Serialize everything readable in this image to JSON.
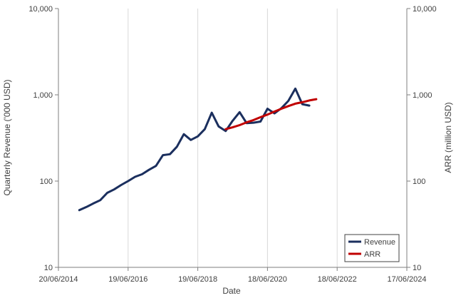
{
  "chart_data": {
    "type": "line",
    "title": "",
    "xlabel": "Date",
    "ylabel_left": "Quarterly Revenue ('000 USD)",
    "ylabel_right": "ARR (million USD)",
    "scale": "log",
    "ylim": [
      10,
      10000
    ],
    "y_ticks": [
      10,
      100,
      1000,
      10000
    ],
    "y_tick_labels": [
      "10",
      "100",
      "1,000",
      "10,000"
    ],
    "x_ticks": [
      0,
      2,
      4,
      6,
      8,
      10
    ],
    "x_tick_labels": [
      "20/06/2014",
      "19/06/2016",
      "19/06/2018",
      "18/06/2020",
      "18/06/2022",
      "17/06/2024"
    ],
    "x_unit": "years since 20/06/2014",
    "xlim": [
      0,
      10
    ],
    "gridlines": "vertical",
    "legend": {
      "position": "bottom-right",
      "entries": [
        "Revenue",
        "ARR"
      ]
    },
    "colors": {
      "Revenue": "#1b2f5e",
      "ARR": "#c00000",
      "grid": "#d9d9d9",
      "axis": "#7f7f7f"
    },
    "series": [
      {
        "name": "Revenue",
        "axis": "left",
        "x": [
          0.6,
          0.8,
          1.0,
          1.2,
          1.4,
          1.6,
          1.8,
          2.0,
          2.2,
          2.4,
          2.6,
          2.8,
          3.0,
          3.2,
          3.4,
          3.6,
          3.8,
          4.0,
          4.2,
          4.4,
          4.6,
          4.8,
          5.0,
          5.2,
          5.4,
          5.6,
          5.8,
          6.0,
          6.2,
          6.4,
          6.6,
          6.8,
          7.0,
          7.2,
          7.4,
          7.6,
          7.8,
          8.0,
          8.2,
          8.4,
          8.6,
          8.8
        ],
        "values": [
          46,
          50,
          55,
          60,
          73,
          80,
          90,
          100,
          112,
          120,
          135,
          150,
          200,
          205,
          250,
          350,
          300,
          330,
          400,
          620,
          430,
          380,
          500,
          630,
          470,
          475,
          490,
          690,
          610,
          700,
          850,
          1180,
          780,
          750,
          null,
          null,
          null,
          null,
          null,
          null,
          null,
          null
        ]
      },
      {
        "name": "ARR",
        "axis": "right",
        "x": [
          4.8,
          5.0,
          5.2,
          5.4,
          5.6,
          5.8,
          6.0,
          6.2,
          6.4,
          6.6,
          6.8,
          7.0,
          7.2,
          7.4
        ],
        "values": [
          400,
          420,
          445,
          480,
          510,
          550,
          590,
          640,
          690,
          740,
          790,
          820,
          860,
          890
        ]
      }
    ]
  }
}
